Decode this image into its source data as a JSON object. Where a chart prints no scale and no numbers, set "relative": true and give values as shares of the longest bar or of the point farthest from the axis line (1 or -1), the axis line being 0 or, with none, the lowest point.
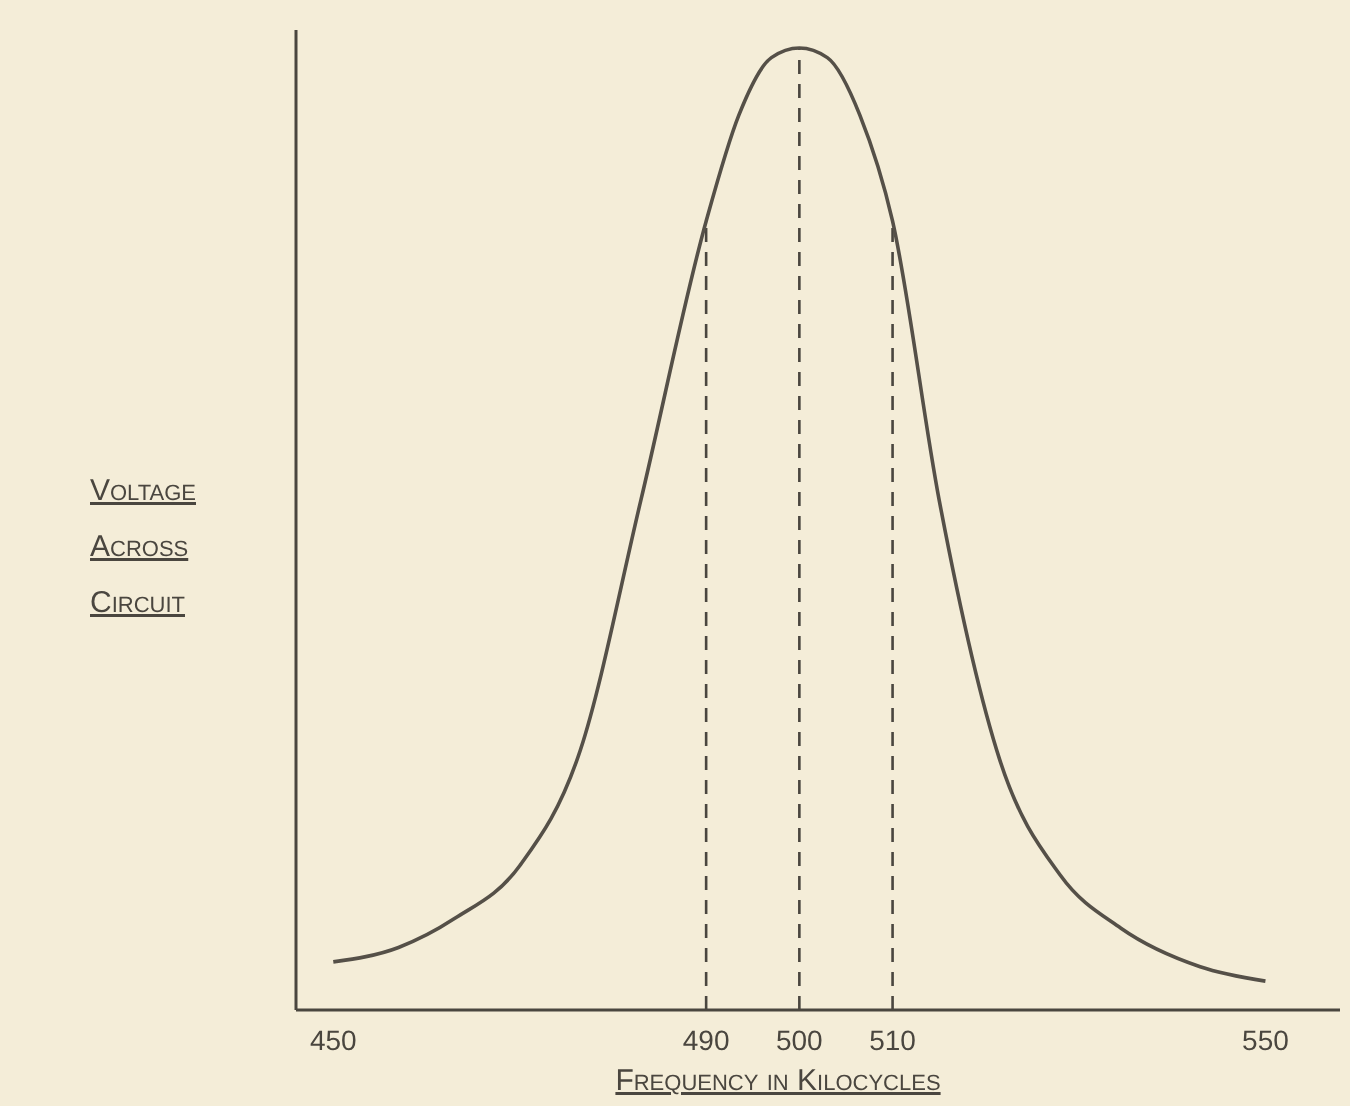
{
  "chart_data": {
    "type": "line",
    "relative": true,
    "xlabel": "Frequency in Kilocycles",
    "ylabel": "Voltage Across Circuit",
    "x": [
      450,
      457,
      463,
      470,
      476.5,
      483,
      490,
      493.5,
      497,
      500,
      503,
      506.5,
      510,
      515,
      521.5,
      528,
      534.5,
      543,
      550
    ],
    "series": [
      {
        "color": "#555048",
        "values": [
          0.05,
          0.065,
          0.095,
          0.15,
          0.27,
          0.53,
          0.82,
          0.93,
          0.99,
          1.0,
          0.99,
          0.93,
          0.82,
          0.53,
          0.26,
          0.14,
          0.085,
          0.045,
          0.03
        ]
      }
    ],
    "xlim": [
      446,
      558
    ],
    "xticks": [
      450,
      490,
      500,
      510,
      550
    ],
    "ref_lines": [
      {
        "axis": "x",
        "value": 490,
        "line_style": "dashed"
      },
      {
        "axis": "x",
        "value": 500,
        "line_style": "dashed"
      },
      {
        "axis": "x",
        "value": 510,
        "line_style": "dashed"
      }
    ],
    "grid": false,
    "legend": false,
    "marker": "none",
    "line_style": "solid"
  }
}
